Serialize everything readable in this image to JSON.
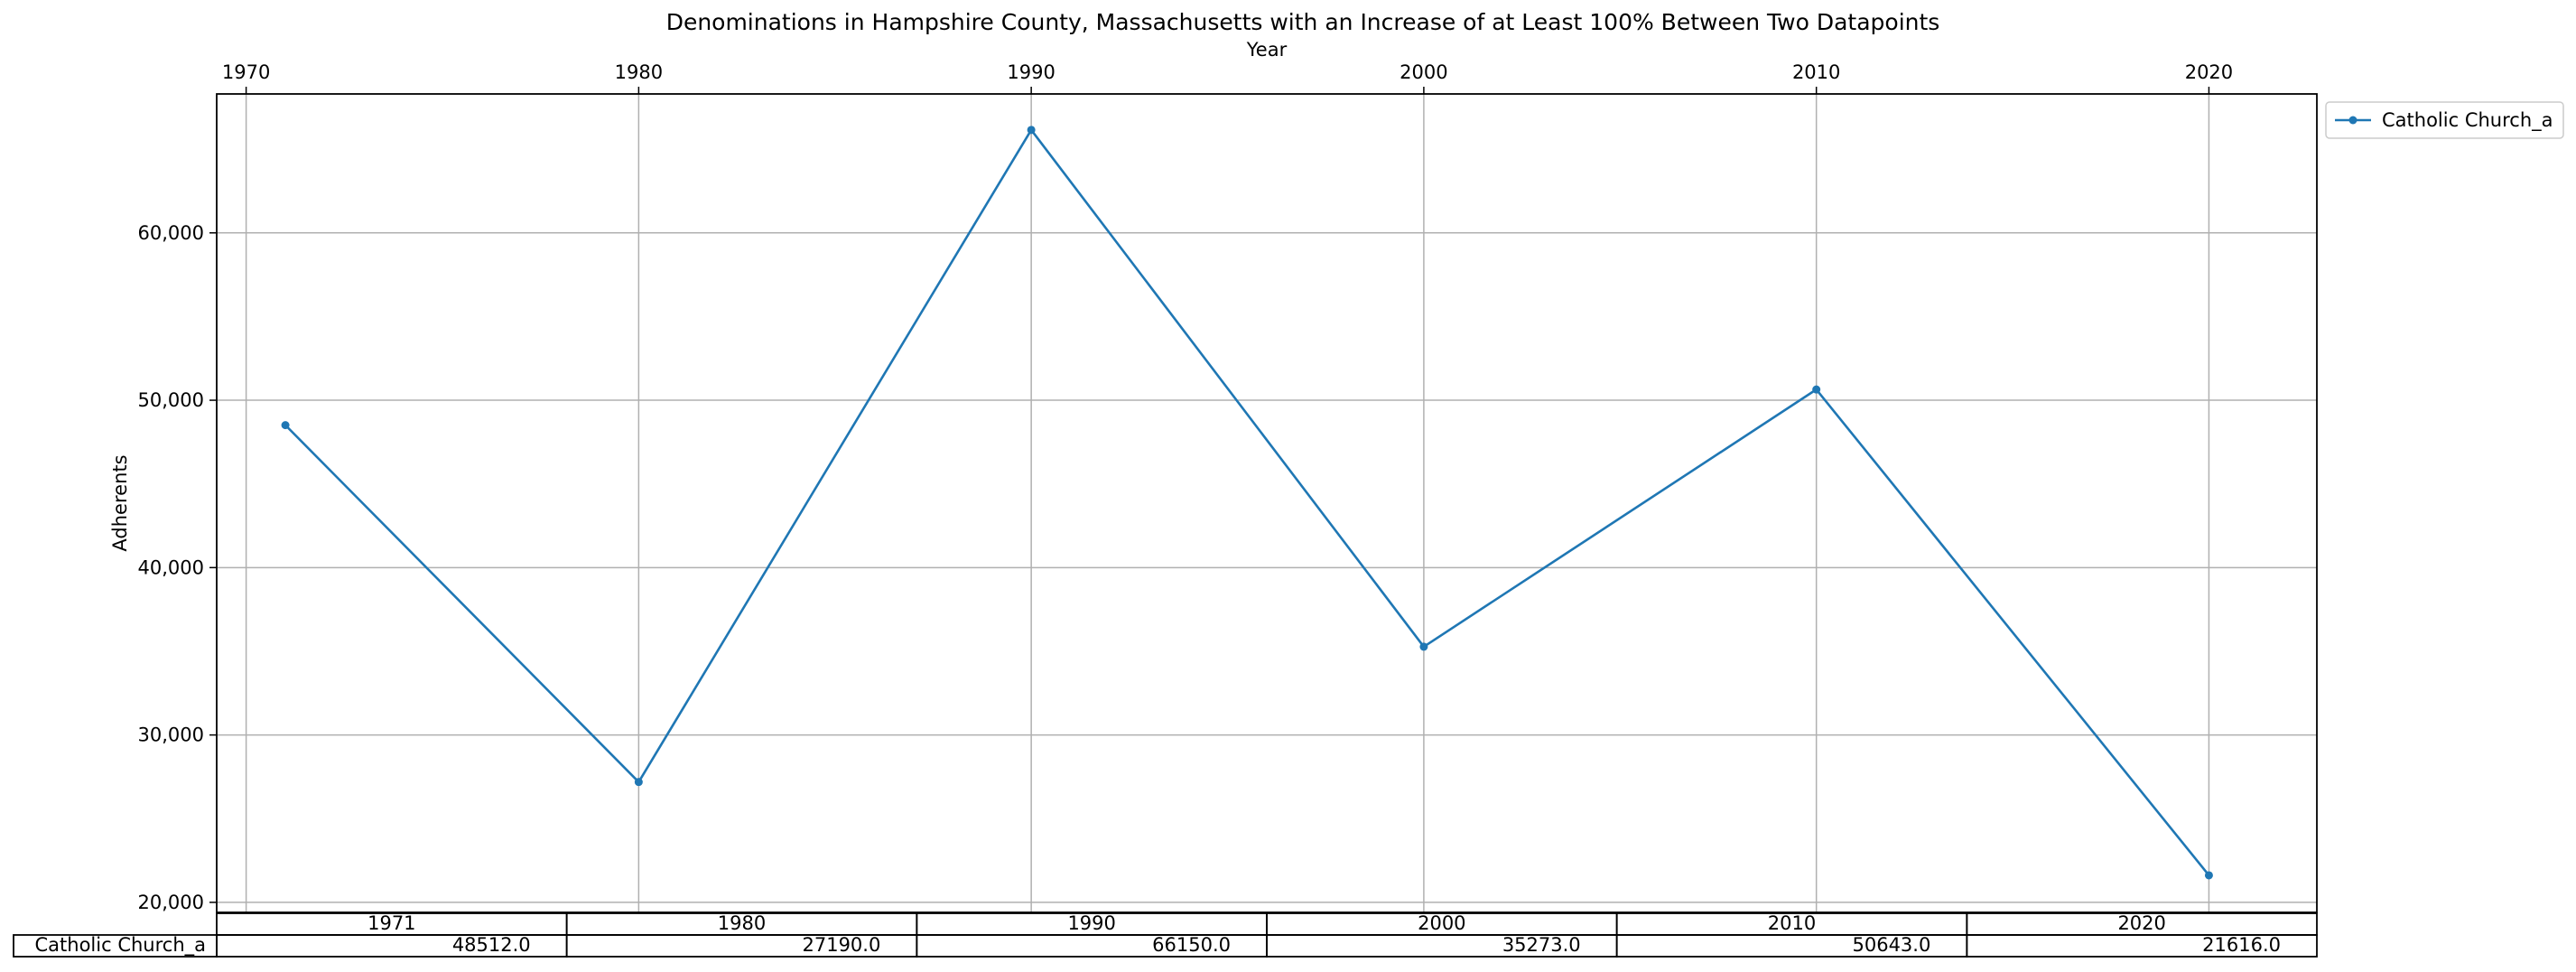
{
  "chart_data": {
    "type": "line",
    "title": "Denominations in Hampshire County, Massachusetts with an Increase of at Least 100% Between Two Datapoints",
    "xlabel": "Year",
    "ylabel": "Adherents",
    "x_axis_position": "top",
    "xlim": [
      1969.25,
      2022.75
    ],
    "ylim": [
      19400,
      68300
    ],
    "x_ticks": [
      1970,
      1980,
      1990,
      2000,
      2010,
      2020
    ],
    "x_tick_labels": [
      "1970",
      "1980",
      "1990",
      "2000",
      "2010",
      "2020"
    ],
    "y_ticks": [
      20000,
      30000,
      40000,
      50000,
      60000
    ],
    "y_tick_labels": [
      "20,000",
      "30,000",
      "40,000",
      "50,000",
      "60,000"
    ],
    "grid": true,
    "legend_position": "outside-top-right",
    "series": [
      {
        "name": "Catholic Church_a",
        "color": "#1f77b4",
        "marker": "dot",
        "x": [
          1971,
          1980,
          1990,
          2000,
          2010,
          2020
        ],
        "y": [
          48512,
          27190,
          66150,
          35273,
          50643,
          21616
        ]
      }
    ],
    "table": {
      "columns": [
        "1971",
        "1980",
        "1990",
        "2000",
        "2010",
        "2020"
      ],
      "rows": [
        {
          "label": "Catholic Church_a",
          "cells": [
            "48512.0",
            "27190.0",
            "66150.0",
            "35273.0",
            "50643.0",
            "21616.0"
          ]
        }
      ]
    }
  }
}
